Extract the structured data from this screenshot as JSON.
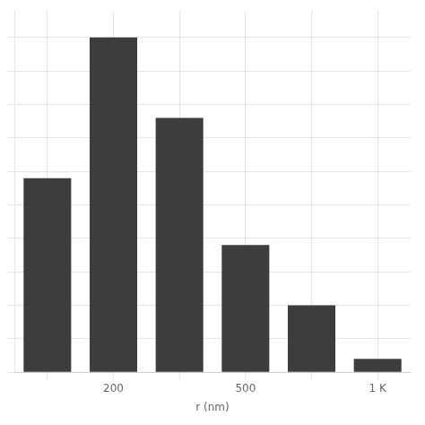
{
  "chart_data": {
    "type": "bar",
    "categories": [
      null,
      "200",
      null,
      "500",
      null,
      "1 K"
    ],
    "values": [
      0.58,
      1.0,
      0.76,
      0.38,
      0.2,
      0.04
    ],
    "color": "#3d3d3d",
    "xlabel": "r (nm)",
    "ylim": [
      0,
      1.08
    ],
    "yticks": [
      0,
      0.1,
      0.2,
      0.3,
      0.4,
      0.5,
      0.6,
      0.7,
      0.8,
      0.9,
      1.0
    ],
    "grid": true,
    "tick_labels": "x"
  }
}
